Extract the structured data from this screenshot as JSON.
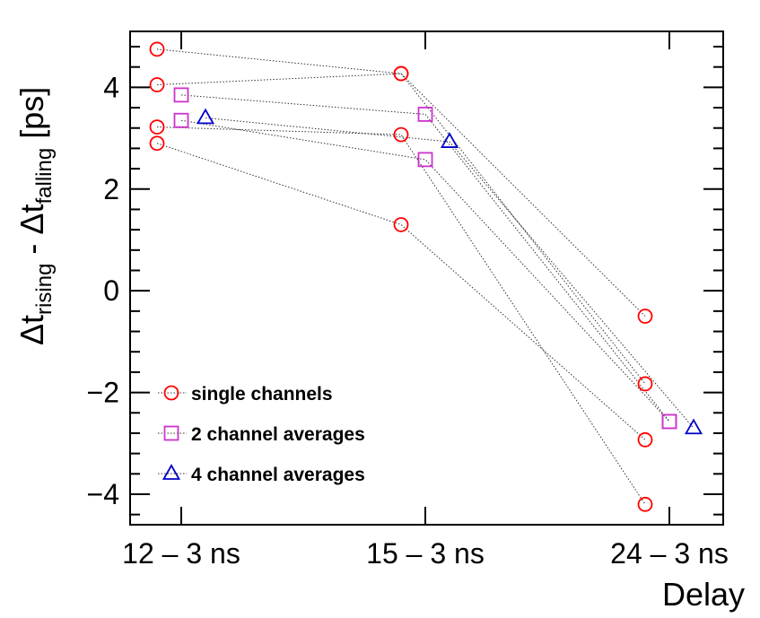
{
  "chart_data": {
    "type": "scatter",
    "title": "",
    "xlabel": "Delay",
    "ylabel_parts": {
      "delta": "Δt",
      "sub1": "rising",
      "minus": " - Δt",
      "sub2": "falling",
      "unit": " [ps]"
    },
    "categories": [
      "12 – 3 ns",
      "15 – 3 ns",
      "24 – 3 ns"
    ],
    "ylim": [
      -4.6,
      5.1
    ],
    "yticks": [
      {
        "value": -4,
        "label": "−4"
      },
      {
        "value": -2,
        "label": "−2"
      },
      {
        "value": 0,
        "label": "0"
      },
      {
        "value": 2,
        "label": "2"
      },
      {
        "value": 4,
        "label": "4"
      }
    ],
    "legend_position": "bottom-left",
    "series": [
      {
        "name": "single channels",
        "marker": "circle",
        "color": "#ff0000",
        "x_offset": -0.5,
        "lines": [
          [
            4.75,
            4.27,
            -1.83
          ],
          [
            4.05,
            4.27,
            -0.5
          ],
          [
            3.22,
            3.07,
            -4.2
          ],
          [
            2.9,
            1.3,
            -2.93
          ]
        ]
      },
      {
        "name": "2 channel averages",
        "marker": "square",
        "color": "#cc33cc",
        "x_offset": 0.0,
        "lines": [
          [
            3.85,
            3.47,
            -2.57
          ],
          [
            3.35,
            2.58,
            -2.57
          ]
        ]
      },
      {
        "name": "4 channel averages",
        "marker": "triangle",
        "color": "#0000cc",
        "x_offset": 0.5,
        "lines": [
          [
            3.4,
            2.93,
            -2.7
          ]
        ]
      }
    ]
  }
}
